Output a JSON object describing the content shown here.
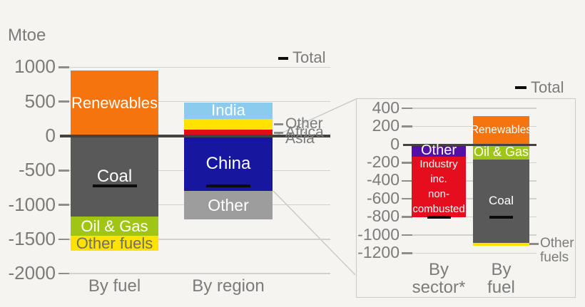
{
  "unit_label": "Mtoe",
  "background_color": "#f5f4f1",
  "chart_data": [
    {
      "id": "main",
      "type": "bar",
      "stacked": true,
      "unit": "Mtoe",
      "legend": {
        "label": "Total",
        "position": "top-right",
        "marker_color": "#0c0c0c"
      },
      "ylim": [
        -2000,
        1000
      ],
      "yticks": [
        1000,
        500,
        0,
        -500,
        -1000,
        -1500,
        -2000
      ],
      "grid": true,
      "categories": [
        "By fuel",
        "By region"
      ],
      "bars": [
        {
          "category": "By fuel",
          "total": -720,
          "segments": [
            {
              "label": "Renewables",
              "value": 950,
              "color": "#f5740d",
              "label_color": "#ffffff"
            },
            {
              "label": "Coal",
              "value": -1170,
              "color": "#595959",
              "label_color": "#ffffff"
            },
            {
              "label": "Oil & Gas",
              "value": -280,
              "color": "#9fc614",
              "label_color": "#ffffff"
            },
            {
              "label": "Other fuels",
              "value": -220,
              "color": "#ffe200",
              "label_color": "#6f6f62"
            }
          ]
        },
        {
          "category": "By region",
          "total": -720,
          "segments": [
            {
              "label": "Africa",
              "value": 95,
              "color": "#e00d15",
              "label_outside": true
            },
            {
              "label": "Other Asia",
              "value": 155,
              "color": "#ffe200",
              "label_outside": true,
              "label_display": "Other\nAsia"
            },
            {
              "label": "India",
              "value": 240,
              "color": "#8acbee",
              "label_color": "#ffffff"
            },
            {
              "label": "China",
              "value": -800,
              "color": "#16169e",
              "label_color": "#ffffff"
            },
            {
              "label": "Other",
              "value": -410,
              "color": "#9d9d9d",
              "label_color": "#ffffff"
            }
          ]
        }
      ]
    },
    {
      "id": "inset",
      "type": "bar",
      "stacked": true,
      "unit": "Mtoe",
      "note": "zoom of China segment",
      "legend": {
        "label": "Total",
        "position": "top-right",
        "marker_color": "#0c0c0c"
      },
      "ylim": [
        -1200,
        400
      ],
      "yticks": [
        400,
        200,
        0,
        -200,
        -400,
        -600,
        -800,
        -1000,
        -1200
      ],
      "grid": true,
      "categories": [
        "By sector*",
        "By fuel"
      ],
      "bars": [
        {
          "category": "By sector*",
          "category_display": "By\nsector*",
          "total": -800,
          "segments": [
            {
              "label": "Other",
              "value": -130,
              "color": "#5410a5",
              "label_color": "#ffffff"
            },
            {
              "label": "Industry inc. non-combusted",
              "value": -670,
              "color": "#e60e1e",
              "label_color": "#ffffff",
              "label_display": "Industry\ninc.\nnon-\ncombusted"
            }
          ]
        },
        {
          "category": "By fuel",
          "category_display": "By\nfuel",
          "total": -800,
          "segments": [
            {
              "label": "Renewables",
              "value": 315,
              "color": "#f5740d",
              "label_color": "#ffffff"
            },
            {
              "label": "Oil & Gas",
              "value": -165,
              "color": "#9fc614",
              "label_color": "#ffffff"
            },
            {
              "label": "Coal",
              "value": -920,
              "color": "#595959",
              "label_color": "#ffffff"
            },
            {
              "label": "Other fuels",
              "value": -30,
              "color": "#ffe200",
              "label_outside": true,
              "label_display": "Other\nfuels"
            }
          ]
        }
      ]
    }
  ]
}
